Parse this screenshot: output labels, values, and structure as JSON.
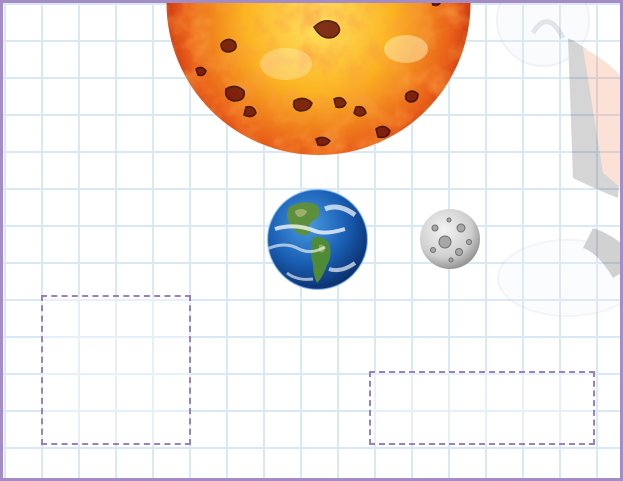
{
  "scene": {
    "frame_color": "#a58cc4",
    "grid_color": "#d9e8f5",
    "drop_zone_border_color": "#9a80c0"
  },
  "objects": [
    {
      "id": "sun",
      "icon": "sun-icon",
      "colors": [
        "#ffe566",
        "#f59b16",
        "#d8340f",
        "#5a0d05"
      ]
    },
    {
      "id": "earth",
      "icon": "earth-icon",
      "colors": [
        "#1a5fb4",
        "#3f8a3a",
        "#ffffff"
      ]
    },
    {
      "id": "moon",
      "icon": "moon-icon",
      "colors": [
        "#e8e8e8",
        "#9a9a9a",
        "#6e6e6e"
      ]
    }
  ],
  "drop_zones": [
    {
      "id": "left"
    },
    {
      "id": "right"
    }
  ]
}
